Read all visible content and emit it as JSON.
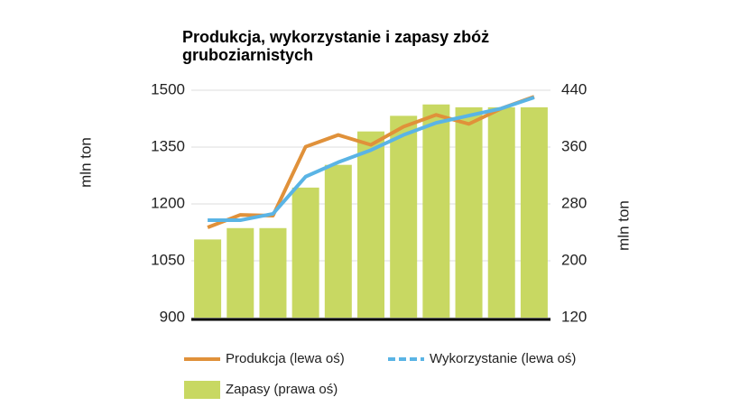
{
  "chart_data": {
    "type": "combo",
    "title": "Produkcja, wykorzystanie i zapasy zbóż gruboziarnistych",
    "y_label": "mln ton",
    "y2_label": "mln ton",
    "categories": [
      null,
      null,
      null,
      null,
      null,
      null,
      null,
      null,
      null,
      null,
      null
    ],
    "series": [
      {
        "name": "Produkcja (lewa oś)",
        "type": "line",
        "color": "#e0913a",
        "values": [
          1138,
          1171,
          1169,
          1351,
          1382,
          1356,
          1404,
          1435,
          1411,
          1452,
          1483
        ]
      },
      {
        "name": "Wykorzystanie (lewa oś)",
        "type": "line",
        "color": "#5ab4e5",
        "values": [
          1157,
          1157,
          1174,
          1272,
          1310,
          1342,
          1382,
          1414,
          1433,
          1452,
          1481
        ]
      },
      {
        "name": "Zapasy (prawa oś)",
        "type": "bar",
        "axis": "y2",
        "color": "#c8d862",
        "values": [
          230,
          246,
          246,
          303,
          335,
          382,
          404,
          420,
          416,
          416,
          416
        ]
      }
    ],
    "ylim": [
      900,
      1500
    ],
    "yticks": [
      900,
      1050,
      1200,
      1350,
      1500
    ],
    "y2lim": [
      120,
      440
    ],
    "y2ticks": [
      120,
      200,
      280,
      360,
      440
    ],
    "grid": true
  }
}
